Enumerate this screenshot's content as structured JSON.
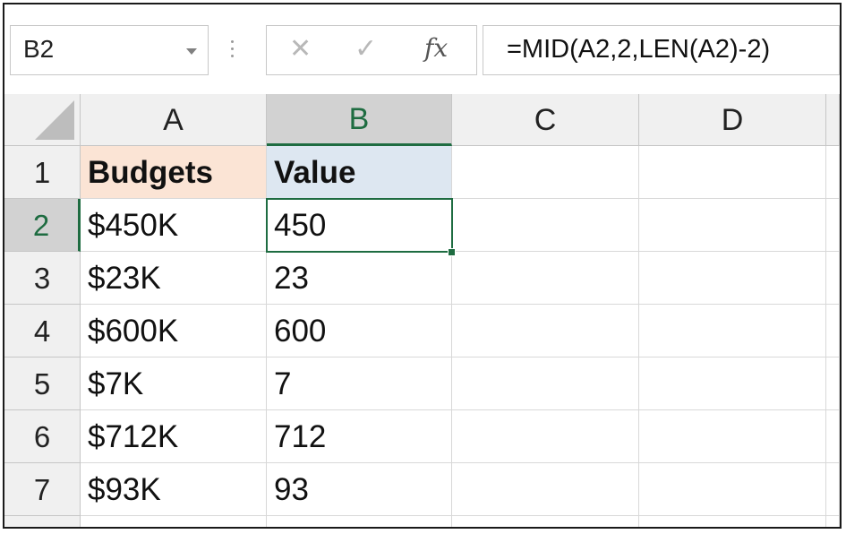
{
  "name_box": {
    "value": "B2"
  },
  "formula_bar": {
    "cancel_icon": "cancel-icon",
    "enter_icon": "enter-icon",
    "fx_label": "fx",
    "formula": "=MID(A2,2,LEN(A2)-2)"
  },
  "columns": [
    "A",
    "B",
    "C",
    "D"
  ],
  "selected_column": "B",
  "rows": [
    "1",
    "2",
    "3",
    "4",
    "5",
    "6",
    "7"
  ],
  "selected_row": "2",
  "active_cell": "B2",
  "cells": {
    "A": [
      "Budgets",
      "$450K",
      "$23K",
      "$600K",
      "$7K",
      "$712K",
      "$93K"
    ],
    "B": [
      "Value",
      "450",
      "23",
      "600",
      "7",
      "712",
      "93"
    ]
  },
  "colors": {
    "header_fill_A1": "#fbe4d5",
    "header_fill_B1": "#dde7f1",
    "selection_green": "#1e6c41"
  }
}
